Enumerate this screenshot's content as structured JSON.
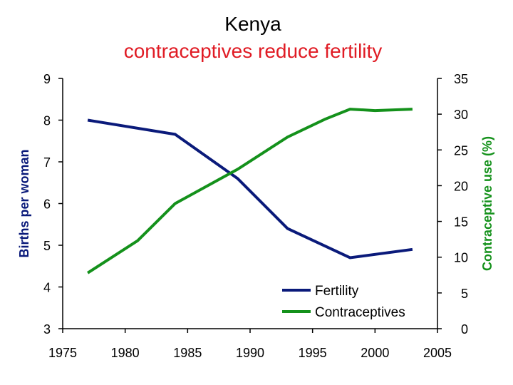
{
  "title": "Kenya",
  "subtitle": "contraceptives reduce fertility",
  "colors": {
    "subtitle": "#e01b24",
    "fertility": "#0a1a7a",
    "contraceptives": "#14911b",
    "right_axis_label": "#14911b",
    "left_axis_label": "#0a1a7a"
  },
  "chart_data": {
    "type": "line",
    "title": "Kenya",
    "subtitle": "contraceptives reduce fertility",
    "xlabel": "",
    "ylabel_left": "Births per woman",
    "ylabel_right": "Contraceptive use (%)",
    "xlim": [
      1975,
      2005
    ],
    "ylim_left": [
      3,
      9
    ],
    "ylim_right": [
      0,
      35
    ],
    "x_ticks": [
      1975,
      1980,
      1985,
      1990,
      1995,
      2000,
      2005
    ],
    "y_left_ticks": [
      3,
      4,
      5,
      6,
      7,
      8,
      9
    ],
    "y_right_ticks": [
      0,
      5,
      10,
      15,
      20,
      25,
      30,
      35
    ],
    "grid": false,
    "legend_position": "bottom-right",
    "series": [
      {
        "name": "Fertility",
        "axis": "left",
        "x": [
          1977,
          1984,
          1989,
          1993,
          1998,
          2003
        ],
        "y": [
          8.0,
          7.66,
          6.6,
          5.4,
          4.7,
          4.9
        ]
      },
      {
        "name": "Contraceptives",
        "axis": "right",
        "x": [
          1977,
          1981,
          1984,
          1989,
          1993,
          1996,
          1998,
          2000,
          2003
        ],
        "y": [
          7.8,
          12.3,
          17.5,
          22.3,
          26.8,
          29.3,
          30.7,
          30.5,
          30.7
        ]
      }
    ]
  }
}
